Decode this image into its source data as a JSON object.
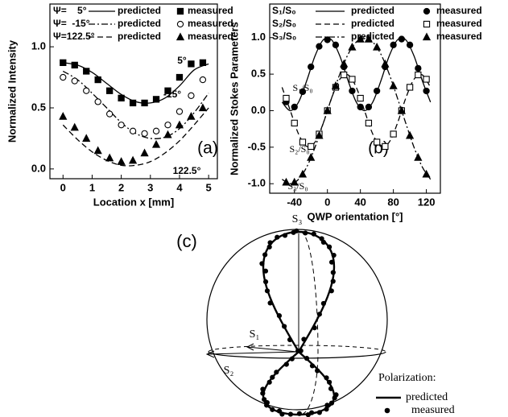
{
  "chart_data": [
    {
      "type": "line",
      "panel_label": "(a)",
      "xlabel": "Location x [mm]",
      "ylabel": "Normalized Intensity",
      "xlim": [
        -0.45,
        5.3
      ],
      "ylim": [
        -0.08,
        1.35
      ],
      "xticks": [
        0,
        1,
        2,
        3,
        4,
        5
      ],
      "yticks": [
        {
          "value": 0,
          "label": "0.0"
        },
        0.5,
        {
          "value": 1,
          "label": "1.0"
        }
      ],
      "legend_labels": [
        "predicted",
        "measured"
      ],
      "annotations": [
        "5°",
        "-15°",
        "122.5°"
      ],
      "series": [
        {
          "name": "Ψ=    5°",
          "color": "#000000",
          "dash": "solid",
          "marker": "square-filled",
          "x": [
            0,
            0.4,
            0.8,
            1.2,
            1.6,
            2.0,
            2.4,
            2.8,
            3.2,
            3.6,
            4.0,
            4.4,
            4.8
          ],
          "values": [
            0.87,
            0.85,
            0.8,
            0.73,
            0.64,
            0.58,
            0.54,
            0.54,
            0.57,
            0.64,
            0.75,
            0.86,
            0.87
          ],
          "fit_x": [
            0,
            0.5,
            1.0,
            1.5,
            2.0,
            2.5,
            3.0,
            3.5,
            4.0,
            4.5,
            5.0
          ],
          "fit_values": [
            0.87,
            0.85,
            0.79,
            0.7,
            0.61,
            0.55,
            0.54,
            0.58,
            0.68,
            0.81,
            0.86
          ]
        },
        {
          "name": "Ψ=  -15°",
          "color": "#000000",
          "dash": "dashdot",
          "marker": "circle-open",
          "x": [
            0,
            0.4,
            0.8,
            1.2,
            1.6,
            2.0,
            2.4,
            2.8,
            3.2,
            3.6,
            4.0,
            4.4,
            4.8
          ],
          "values": [
            0.75,
            0.72,
            0.64,
            0.55,
            0.45,
            0.36,
            0.31,
            0.29,
            0.31,
            0.36,
            0.47,
            0.6,
            0.73
          ],
          "fit_x": [
            0,
            0.5,
            1.0,
            1.5,
            2.0,
            2.5,
            3.0,
            3.5,
            4.0,
            4.5,
            5.0
          ],
          "fit_values": [
            0.8,
            0.73,
            0.62,
            0.5,
            0.38,
            0.29,
            0.25,
            0.26,
            0.33,
            0.46,
            0.62
          ]
        },
        {
          "name": "Ψ=122.5°",
          "color": "#000000",
          "dash": "dashed",
          "marker": "triangle-filled",
          "x": [
            0,
            0.4,
            0.8,
            1.2,
            1.6,
            2.0,
            2.4,
            2.8,
            3.2,
            3.6,
            4.0,
            4.4,
            4.8
          ],
          "values": [
            0.43,
            0.34,
            0.25,
            0.15,
            0.09,
            0.06,
            0.07,
            0.13,
            0.2,
            0.28,
            0.36,
            0.43,
            0.5
          ],
          "fit_x": [
            0,
            0.5,
            1.0,
            1.5,
            2.0,
            2.5,
            3.0,
            3.5,
            4.0,
            4.5,
            5.0
          ],
          "fit_values": [
            0.36,
            0.24,
            0.14,
            0.07,
            0.03,
            0.03,
            0.06,
            0.13,
            0.23,
            0.36,
            0.5
          ]
        }
      ]
    },
    {
      "type": "line",
      "panel_label": "(b)",
      "xlabel": "QWP orientation [°]",
      "ylabel": "Normalized Stokes Parameters",
      "xlim": [
        -70,
        137
      ],
      "ylim": [
        -1.13,
        1.46
      ],
      "xticks": [
        -40,
        0,
        40,
        80,
        120
      ],
      "yticks": [
        {
          "value": -1,
          "label": "-1.0"
        },
        -0.5,
        {
          "value": 0,
          "label": "0.0"
        },
        0.5,
        {
          "value": 1,
          "label": "1.0"
        }
      ],
      "legend_labels": [
        "predicted",
        "measured"
      ],
      "annotations": [
        "S₁/S₀",
        "S₂/S₀",
        "S₃/S₀"
      ],
      "series": [
        {
          "name": "S₁/S₀",
          "color": "#000000",
          "dash": "solid",
          "marker": "circle-filled",
          "x": [
            -50,
            -40,
            -30,
            -20,
            -10,
            0,
            10,
            20,
            30,
            40,
            50,
            60,
            70,
            80,
            90,
            100,
            110,
            120
          ],
          "values": [
            0.12,
            0.05,
            0.26,
            0.6,
            0.88,
            0.97,
            0.9,
            0.6,
            0.27,
            0.05,
            0.05,
            0.27,
            0.6,
            0.9,
            0.98,
            0.9,
            0.58,
            0.27
          ],
          "fit_x": [
            -55,
            -45,
            -35,
            -25,
            -15,
            -5,
            5,
            15,
            25,
            35,
            45,
            55,
            65,
            75,
            85,
            95,
            105,
            115,
            125
          ],
          "fit_values": [
            0.117,
            0,
            0.117,
            0.413,
            0.75,
            0.97,
            0.97,
            0.75,
            0.413,
            0.117,
            0,
            0.117,
            0.413,
            0.75,
            0.97,
            0.97,
            0.75,
            0.413,
            0.117
          ]
        },
        {
          "name": "S₂/S₀",
          "color": "#000000",
          "dash": "dashed",
          "marker": "square-open",
          "x": [
            -50,
            -40,
            -30,
            -20,
            -10,
            0,
            10,
            20,
            30,
            40,
            50,
            60,
            70,
            80,
            90,
            100,
            110,
            120
          ],
          "values": [
            0.17,
            -0.17,
            -0.43,
            -0.49,
            -0.32,
            0,
            0.32,
            0.49,
            0.43,
            0.17,
            -0.17,
            -0.43,
            -0.49,
            -0.32,
            0,
            0.32,
            0.49,
            0.43
          ],
          "fit_x": [
            -55,
            -45,
            -35,
            -25,
            -15,
            -5,
            5,
            15,
            25,
            35,
            45,
            55,
            65,
            75,
            85,
            95,
            105,
            115,
            125
          ],
          "fit_values": [
            0.32,
            0,
            -0.32,
            -0.49,
            -0.43,
            -0.17,
            0.17,
            0.43,
            0.49,
            0.32,
            0,
            -0.32,
            -0.49,
            -0.43,
            -0.17,
            0.17,
            0.43,
            0.49,
            0.32
          ]
        },
        {
          "name": "S₃/S₀",
          "color": "#000000",
          "dash": "dashdot",
          "marker": "triangle-filled",
          "x": [
            -50,
            -40,
            -30,
            -20,
            -10,
            0,
            10,
            20,
            30,
            40,
            50,
            60,
            70,
            80,
            90,
            100,
            110,
            120
          ],
          "values": [
            -0.98,
            -0.98,
            -0.87,
            -0.64,
            -0.34,
            0,
            0.34,
            0.64,
            0.87,
            0.98,
            0.98,
            0.87,
            0.64,
            0.34,
            0,
            -0.34,
            -0.64,
            -0.87
          ],
          "fit_x": [
            -55,
            -45,
            -35,
            -25,
            -15,
            -5,
            5,
            15,
            25,
            35,
            45,
            55,
            65,
            75,
            85,
            95,
            105,
            115,
            125
          ],
          "fit_values": [
            -0.94,
            -1,
            -0.94,
            -0.77,
            -0.5,
            -0.17,
            0.17,
            0.5,
            0.77,
            0.94,
            1,
            0.94,
            0.77,
            0.5,
            0.17,
            -0.17,
            -0.5,
            -0.77,
            -0.94
          ]
        }
      ]
    }
  ],
  "sphere_diagram": {
    "panel_label": "(c)",
    "axis_labels": [
      "S₃",
      "S₁",
      "S₂"
    ],
    "legend": {
      "title": "Polarization:",
      "entries": [
        "predicted",
        "measured"
      ]
    }
  }
}
